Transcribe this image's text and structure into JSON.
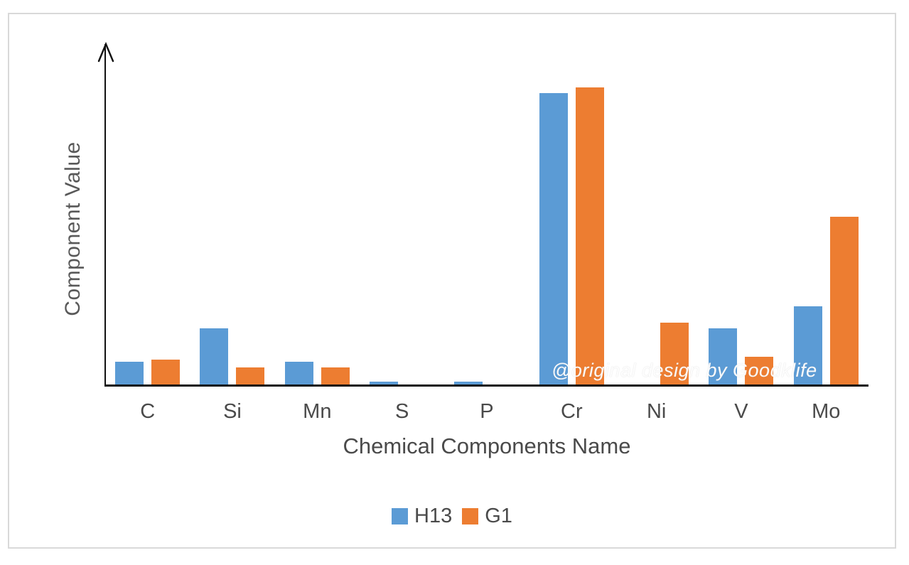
{
  "chart_data": {
    "type": "bar",
    "title": "",
    "categories": [
      "C",
      "Si",
      "Mn",
      "S",
      "P",
      "Cr",
      "Ni",
      "V",
      "Mo"
    ],
    "series": [
      {
        "name": "H13",
        "color": "#5B9BD5",
        "values": [
          0.4,
          1.0,
          0.4,
          0.03,
          0.03,
          5.2,
          0,
          1.0,
          1.4
        ]
      },
      {
        "name": "G1",
        "color": "#ED7D31",
        "values": [
          0.45,
          0.3,
          0.3,
          0,
          0,
          5.3,
          1.1,
          0.5,
          3.0
        ]
      }
    ],
    "xlabel": "Chemical Components Name",
    "ylabel": "Component Value",
    "ylim": [
      0,
      6
    ],
    "grid": false,
    "y_tick_labels_shown": false,
    "legend_position": "bottom"
  },
  "watermark": {
    "text": "@original design by Goodklife"
  }
}
